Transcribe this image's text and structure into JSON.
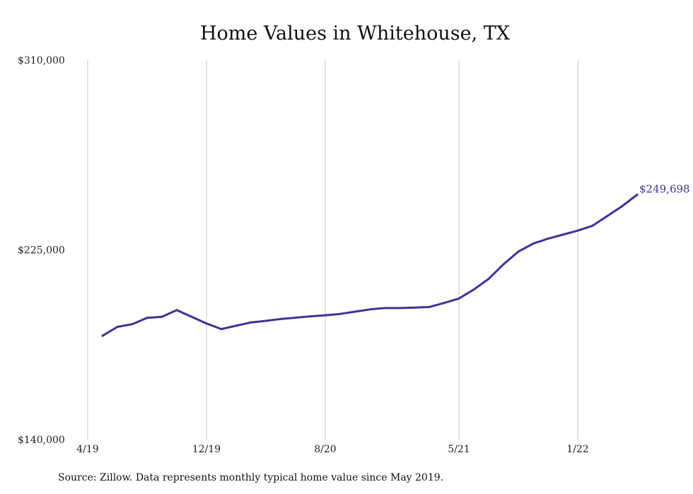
{
  "chart_data": {
    "type": "line",
    "title": "Home Values in Whitehouse, TX",
    "xlabel": "",
    "ylabel": "",
    "x_ticks": [
      "4/19",
      "12/19",
      "8/20",
      "5/21",
      "1/22"
    ],
    "y_ticks": [
      "$310,000",
      "$225,000",
      "$140,000"
    ],
    "ylim": [
      140000,
      310000
    ],
    "grid": "vertical",
    "line_color": "#3f3399",
    "series": [
      {
        "x": [
          "5/19",
          "6/19",
          "7/19",
          "8/19",
          "9/19",
          "10/19",
          "11/19",
          "12/19",
          "1/20",
          "2/20",
          "3/20",
          "4/20",
          "5/20",
          "6/20",
          "7/20",
          "8/20",
          "9/20",
          "10/20",
          "11/20",
          "12/20",
          "1/21",
          "2/21",
          "3/21",
          "4/21",
          "5/21",
          "6/21",
          "7/21",
          "8/21",
          "9/21",
          "10/21",
          "11/21",
          "12/21",
          "1/22",
          "2/22",
          "3/22",
          "4/22",
          "5/22"
        ],
        "values": [
          186500,
          190500,
          191700,
          194500,
          195000,
          198000,
          195000,
          192000,
          189500,
          191000,
          192500,
          193200,
          194000,
          194600,
          195200,
          195700,
          196300,
          197300,
          198300,
          198900,
          198900,
          199100,
          199400,
          201200,
          203200,
          207200,
          212000,
          218500,
          224200,
          227800,
          230000,
          231800,
          233600,
          235800,
          240200,
          244600,
          249698
        ]
      }
    ],
    "end_label": "$249,698",
    "source": "Source: Zillow. Data represents monthly typical home value since May 2019."
  }
}
